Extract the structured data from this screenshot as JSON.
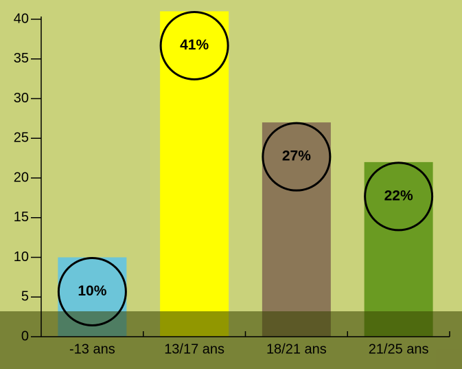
{
  "chart_data": {
    "type": "bar",
    "categories": [
      "-13 ans",
      "13/17 ans",
      "18/21 ans",
      "21/25 ans"
    ],
    "values": [
      10,
      41,
      27,
      22
    ],
    "value_labels": [
      "10%",
      "41%",
      "27%",
      "22%"
    ],
    "colors": [
      "#6cc5d9",
      "#ffff00",
      "#8b7757",
      "#6a9b22"
    ],
    "ylim": [
      0,
      40
    ],
    "yticks": [
      0,
      5,
      10,
      15,
      20,
      25,
      30,
      35,
      40
    ]
  }
}
